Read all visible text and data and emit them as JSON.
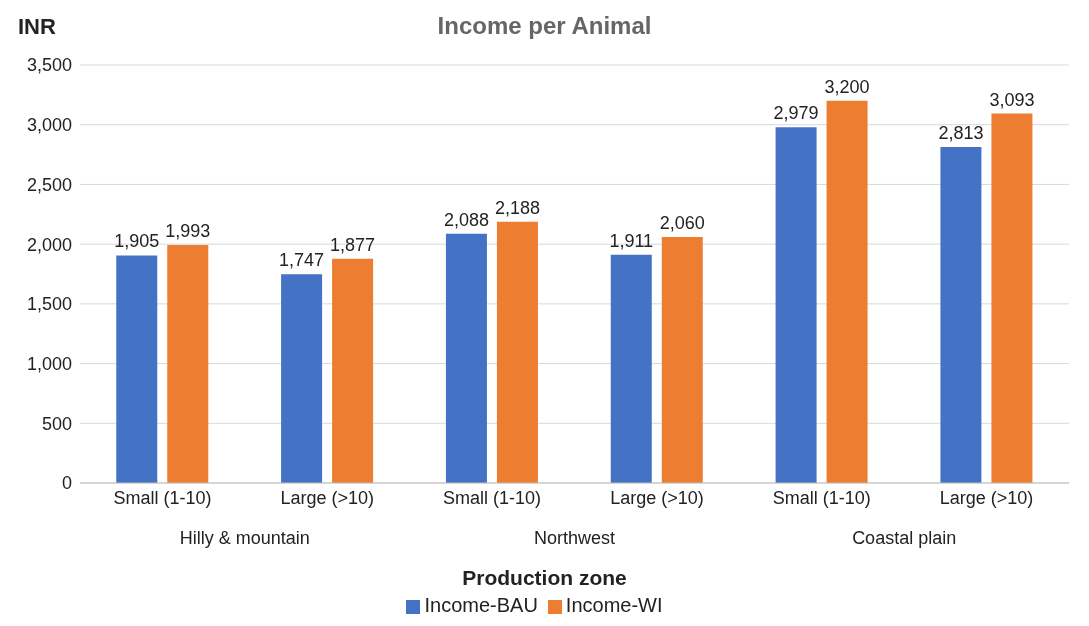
{
  "chart_data": {
    "type": "bar",
    "title": "Income per Animal",
    "ylabel": "INR",
    "xlabel": "Production zone",
    "categories": [
      "Small (1-10)",
      "Large (>10)",
      "Small (1-10)",
      "Large (>10)",
      "Small (1-10)",
      "Large (>10)"
    ],
    "annotations": [
      "Hilly & mountain",
      "Northwest",
      "Coastal plain"
    ],
    "series": [
      {
        "name": "Income-BAU",
        "color": "#4472c4",
        "values": [
          1905,
          1747,
          2088,
          1911,
          2979,
          2813
        ],
        "value_labels": [
          "1,905",
          "1,747",
          "2,088",
          "1,911",
          "2,979",
          "2,813"
        ]
      },
      {
        "name": "Income-WI",
        "color": "#ed7d31",
        "values": [
          1993,
          1877,
          2188,
          2060,
          3200,
          3093
        ],
        "value_labels": [
          "1,993",
          "1,877",
          "2,188",
          "2,060",
          "3,200",
          "3,093"
        ]
      }
    ],
    "ylim": [
      0,
      3500
    ],
    "yticks": [
      0,
      500,
      {
        "value": 1000,
        "label": "1,000"
      },
      {
        "value": 1500,
        "label": "1,500"
      },
      {
        "value": 2000,
        "label": "2,000"
      },
      {
        "value": 2500,
        "label": "2,500"
      },
      {
        "value": 3000,
        "label": "3,000"
      },
      {
        "value": 3500,
        "label": "3,500"
      }
    ],
    "grid": "y",
    "legend": "bottom"
  }
}
